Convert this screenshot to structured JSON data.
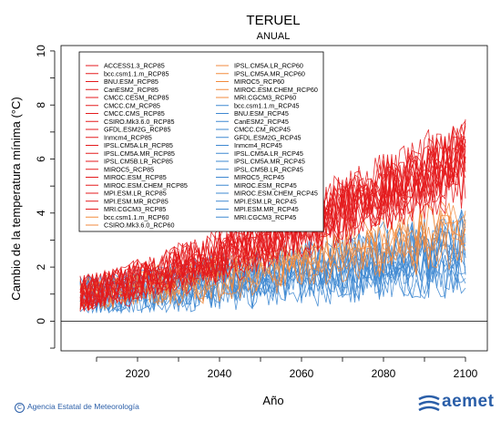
{
  "chart_data": {
    "type": "line",
    "title": "TERUEL",
    "subtitle": "ANUAL",
    "xlabel": "Año",
    "ylabel": "Cambio de la temperatura mínima (°C)",
    "xlim": [
      2006,
      2100
    ],
    "ylim": [
      -1.1,
      10.2
    ],
    "x_ticks": [
      2020,
      2040,
      2060,
      2080,
      2100
    ],
    "y_ticks": [
      0,
      2,
      4,
      6,
      8,
      10
    ],
    "grid": false,
    "legend_placement": "top-left",
    "reference_line": 0,
    "scenarios": [
      {
        "name": "RCP85",
        "color": "#e41a1c",
        "trend": [
          1.0,
          6.0
        ],
        "noise": 1.0
      },
      {
        "name": "RCP60",
        "color": "#f28a3c",
        "trend": [
          1.0,
          3.6
        ],
        "noise": 0.9
      },
      {
        "name": "RCP45",
        "color": "#3e88d1",
        "trend": [
          1.0,
          2.7
        ],
        "noise": 1.0
      }
    ],
    "legend_col1": [
      {
        "label": "ACCESS1.3_RCP85",
        "color": "#e41a1c"
      },
      {
        "label": "bcc.csm1.1.m_RCP85",
        "color": "#e41a1c"
      },
      {
        "label": "BNU.ESM_RCP85",
        "color": "#e41a1c"
      },
      {
        "label": "CanESM2_RCP85",
        "color": "#e41a1c"
      },
      {
        "label": "CMCC.CESM_RCP85",
        "color": "#e41a1c"
      },
      {
        "label": "CMCC.CM_RCP85",
        "color": "#e41a1c"
      },
      {
        "label": "CMCC.CMS_RCP85",
        "color": "#e41a1c"
      },
      {
        "label": "CSIRO.Mk3.6.0_RCP85",
        "color": "#e41a1c"
      },
      {
        "label": "GFDL.ESM2G_RCP85",
        "color": "#e41a1c"
      },
      {
        "label": "Inmcm4_RCP85",
        "color": "#e41a1c"
      },
      {
        "label": "IPSL.CM5A.LR_RCP85",
        "color": "#e41a1c"
      },
      {
        "label": "IPSL.CM5A.MR_RCP85",
        "color": "#e41a1c"
      },
      {
        "label": "IPSL.CM5B.LR_RCP85",
        "color": "#e41a1c"
      },
      {
        "label": "MIROC5_RCP85",
        "color": "#e41a1c"
      },
      {
        "label": "MIROC.ESM_RCP85",
        "color": "#e41a1c"
      },
      {
        "label": "MIROC.ESM.CHEM_RCP85",
        "color": "#e41a1c"
      },
      {
        "label": "MPI.ESM.LR_RCP85",
        "color": "#e41a1c"
      },
      {
        "label": "MPI.ESM.MR_RCP85",
        "color": "#e41a1c"
      },
      {
        "label": "MRI.CGCM3_RCP85",
        "color": "#e41a1c"
      },
      {
        "label": "bcc.csm1.1.m_RCP60",
        "color": "#f28a3c"
      },
      {
        "label": "CSIRO.Mk3.6.0_RCP60",
        "color": "#f28a3c"
      }
    ],
    "legend_col2": [
      {
        "label": "IPSL.CM5A.LR_RCP60",
        "color": "#f28a3c"
      },
      {
        "label": "IPSL.CM5A.MR_RCP60",
        "color": "#f28a3c"
      },
      {
        "label": "MIROC5_RCP60",
        "color": "#f28a3c"
      },
      {
        "label": "MIROC.ESM.CHEM_RCP60",
        "color": "#f28a3c"
      },
      {
        "label": "MRI.CGCM3_RCP60",
        "color": "#f28a3c"
      },
      {
        "label": "bcc.csm1.1.m_RCP45",
        "color": "#3e88d1"
      },
      {
        "label": "BNU.ESM_RCP45",
        "color": "#3e88d1"
      },
      {
        "label": "CanESM2_RCP45",
        "color": "#3e88d1"
      },
      {
        "label": "CMCC.CM_RCP45",
        "color": "#3e88d1"
      },
      {
        "label": "GFDL.ESM2G_RCP45",
        "color": "#3e88d1"
      },
      {
        "label": "Inmcm4_RCP45",
        "color": "#3e88d1"
      },
      {
        "label": "IPSL.CM5A.LR_RCP45",
        "color": "#3e88d1"
      },
      {
        "label": "IPSL.CM5A.MR_RCP45",
        "color": "#3e88d1"
      },
      {
        "label": "IPSL.CM5B.LR_RCP45",
        "color": "#3e88d1"
      },
      {
        "label": "MIROC5_RCP45",
        "color": "#3e88d1"
      },
      {
        "label": "MIROC.ESM_RCP45",
        "color": "#3e88d1"
      },
      {
        "label": "MIROC.ESM.CHEM_RCP45",
        "color": "#3e88d1"
      },
      {
        "label": "MPI.ESM.LR_RCP45",
        "color": "#3e88d1"
      },
      {
        "label": "MPI.ESM.MR_RCP45",
        "color": "#3e88d1"
      },
      {
        "label": "MRI.CGCM3_RCP45",
        "color": "#3e88d1"
      }
    ]
  },
  "footer": {
    "copyright": "Agencia Estatal de Meteorología",
    "logo_text": "aemet",
    "copyright_symbol": "C"
  }
}
